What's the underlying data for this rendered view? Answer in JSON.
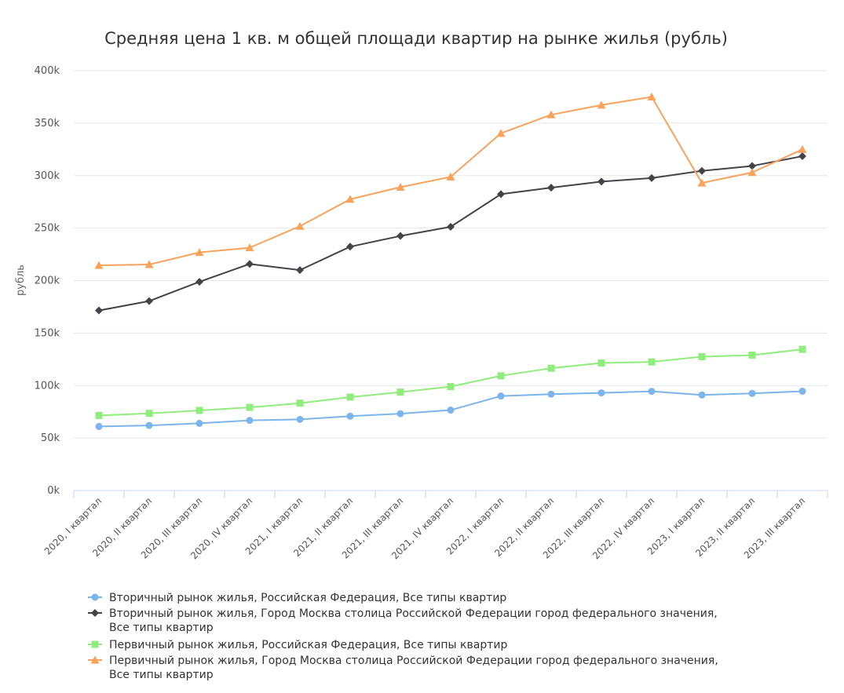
{
  "chart_data": {
    "type": "line",
    "title": "Средняя цена 1 кв. м общей площади квартир на рынке жилья (рубль)",
    "ylabel": "рубль",
    "ylim": [
      0,
      400000
    ],
    "yticks": [
      {
        "value": 0,
        "label": "0k"
      },
      {
        "value": 50000,
        "label": "50k"
      },
      {
        "value": 100000,
        "label": "100k"
      },
      {
        "value": 150000,
        "label": "150k"
      },
      {
        "value": 200000,
        "label": "200k"
      },
      {
        "value": 250000,
        "label": "250k"
      },
      {
        "value": 300000,
        "label": "300k"
      },
      {
        "value": 350000,
        "label": "350k"
      },
      {
        "value": 400000,
        "label": "400k"
      }
    ],
    "grid": true,
    "legend_position": "bottom-left",
    "categories": [
      "2020, I квартал",
      "2020, II квартал",
      "2020, III квартал",
      "2020, IV квартал",
      "2021, I квартал",
      "2021, II квартал",
      "2021, III квартал",
      "2021, IV квартал",
      "2022, I квартал",
      "2022, II квартал",
      "2022, III квартал",
      "2022, IV квартал",
      "2023, I квартал",
      "2023, II квартал",
      "2023, III квартал"
    ],
    "series": [
      {
        "name": "Вторичный рынок жилья, Российская Федерация, Все типы квартир",
        "legend_lines": [
          "Вторичный рынок жилья, Российская Федерация, Все типы квартир"
        ],
        "color": "#7cb5ec",
        "marker": "circle",
        "values": [
          61000,
          62000,
          64000,
          66800,
          67800,
          70800,
          73200,
          76600,
          90000,
          91800,
          93000,
          94500,
          91000,
          92500,
          94600
        ]
      },
      {
        "name": "Вторичный рынок жилья, Город Москва столица Российской Федерации город федерального значения, Все типы квартир",
        "legend_lines": [
          "Вторичный рынок жилья, Город Москва столица Российской Федерации город федерального значения,",
          "Все типы квартир"
        ],
        "color": "#434348",
        "marker": "diamond",
        "values": [
          171500,
          180500,
          198800,
          215800,
          210000,
          232300,
          242500,
          251200,
          282300,
          288500,
          294300,
          297700,
          304500,
          309200,
          318500
        ]
      },
      {
        "name": "Первичный рынок жилья, Российская Федерация, Все типы квартир",
        "legend_lines": [
          "Первичный рынок жилья, Российская Федерация, Все типы квартир"
        ],
        "color": "#90ed7d",
        "marker": "square",
        "values": [
          71500,
          73500,
          76300,
          79200,
          83200,
          89000,
          93700,
          99000,
          109300,
          116500,
          121500,
          122500,
          127500,
          129000,
          134500
        ]
      },
      {
        "name": "Первичный рынок жилья, Город Москва столица Российской Федерации город федерального значения, Все типы квартир",
        "legend_lines": [
          "Первичный рынок жилья, Город Москва столица Российской Федерации город федерального значения,",
          "Все типы квартир"
        ],
        "color": "#f7a35c",
        "marker": "triangle",
        "values": [
          214500,
          215300,
          226800,
          231300,
          251800,
          277500,
          289000,
          298800,
          340300,
          358000,
          367200,
          375000,
          293000,
          303000,
          325000
        ]
      }
    ]
  }
}
